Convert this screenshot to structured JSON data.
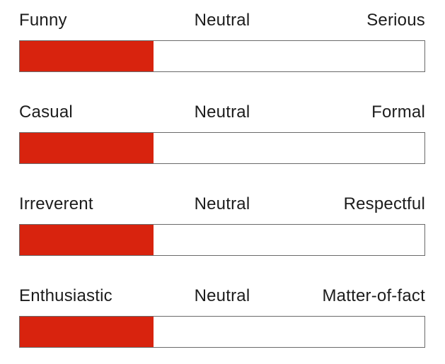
{
  "colors": {
    "fill": "#d8230e",
    "track": "#ffffff",
    "border": "#6a6a6a",
    "text": "#1c1c1c",
    "background": "#ffffff"
  },
  "sliders": [
    {
      "left_label": "Funny",
      "center_label": "Neutral",
      "right_label": "Serious",
      "fill_percent": 33
    },
    {
      "left_label": "Casual",
      "center_label": "Neutral",
      "right_label": "Formal",
      "fill_percent": 33
    },
    {
      "left_label": "Irreverent",
      "center_label": "Neutral",
      "right_label": "Respectful",
      "fill_percent": 33
    },
    {
      "left_label": "Enthusiastic",
      "center_label": "Neutral",
      "right_label": "Matter-of-fact",
      "fill_percent": 33
    }
  ]
}
